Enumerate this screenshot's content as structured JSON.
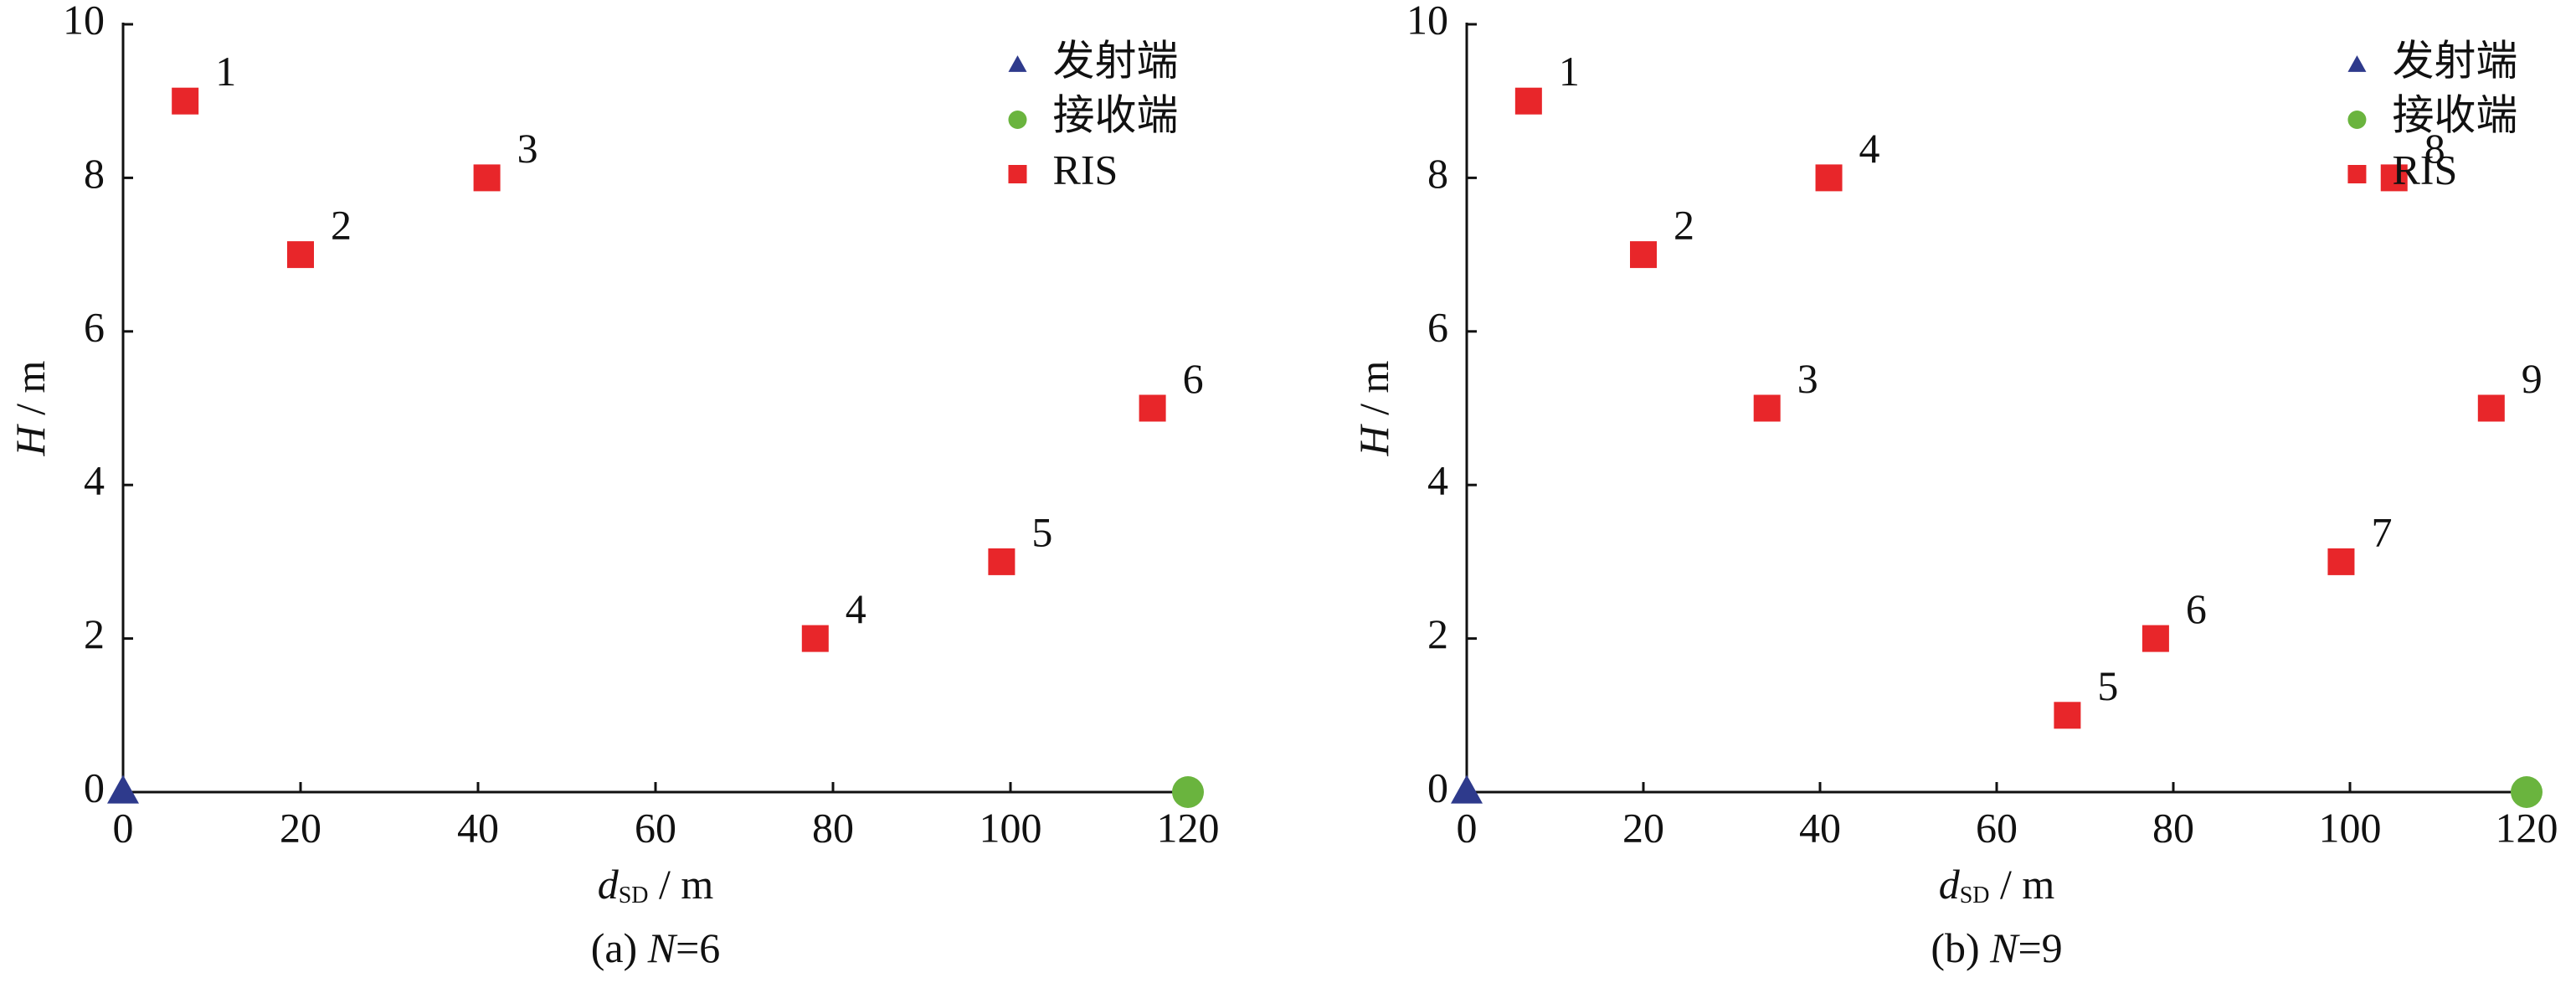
{
  "chart_data": [
    {
      "type": "scatter",
      "caption": [
        "(a) ",
        "N",
        "=6"
      ],
      "xlabel": {
        "symbol": "d",
        "subscript": "SD",
        "unit": " / m"
      },
      "ylabel": {
        "symbol": "H",
        "unit": " / m"
      },
      "xlim": [
        0,
        120
      ],
      "xticks": [
        0,
        20,
        40,
        60,
        80,
        100,
        120
      ],
      "ylim": [
        0,
        10
      ],
      "yticks": [
        0,
        2,
        4,
        6,
        8,
        10
      ],
      "legend": "upper right",
      "series": [
        {
          "name": "发射端",
          "color": "#2e3a8c",
          "marker": "triangle",
          "x": [
            0
          ],
          "values": [
            0
          ]
        },
        {
          "name": "接收端",
          "color": "#6ab43e",
          "marker": "circle",
          "x": [
            120
          ],
          "values": [
            0
          ]
        },
        {
          "name": "RIS",
          "color": "#e8262a",
          "marker": "square",
          "x": [
            7,
            20,
            41,
            78,
            99,
            116
          ],
          "values": [
            9,
            7,
            8,
            2,
            3,
            5
          ],
          "point_labels": [
            "1",
            "2",
            "3",
            "4",
            "5",
            "6"
          ]
        }
      ]
    },
    {
      "type": "scatter",
      "caption": [
        "(b) ",
        "N",
        "=9"
      ],
      "xlabel": {
        "symbol": "d",
        "subscript": "SD",
        "unit": " / m"
      },
      "ylabel": {
        "symbol": "H",
        "unit": " / m"
      },
      "xlim": [
        0,
        120
      ],
      "xticks": [
        0,
        20,
        40,
        60,
        80,
        100,
        120
      ],
      "ylim": [
        0,
        10
      ],
      "yticks": [
        0,
        2,
        4,
        6,
        8,
        10
      ],
      "legend": "upper right",
      "series": [
        {
          "name": "发射端",
          "color": "#2e3a8c",
          "marker": "triangle",
          "x": [
            0
          ],
          "values": [
            0
          ]
        },
        {
          "name": "接收端",
          "color": "#6ab43e",
          "marker": "circle",
          "x": [
            120
          ],
          "values": [
            0
          ]
        },
        {
          "name": "RIS",
          "color": "#e8262a",
          "marker": "square",
          "x": [
            7,
            20,
            34,
            41,
            68,
            78,
            99,
            105,
            116
          ],
          "values": [
            9,
            7,
            5,
            8,
            1,
            2,
            3,
            8,
            5
          ],
          "point_labels": [
            "1",
            "2",
            "3",
            "4",
            "5",
            "6",
            "7",
            "8",
            "9"
          ]
        }
      ]
    }
  ]
}
